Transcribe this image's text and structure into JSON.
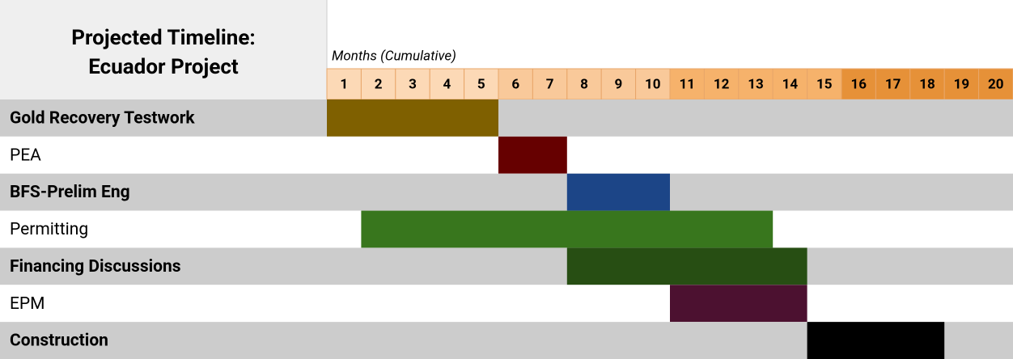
{
  "chart_data": {
    "type": "gantt",
    "title": [
      "Projected Timeline:",
      "Ecuador Project"
    ],
    "x_label": "Months (Cumulative)",
    "categories": [
      1,
      2,
      3,
      4,
      5,
      6,
      7,
      8,
      9,
      10,
      11,
      12,
      13,
      14,
      15,
      16,
      17,
      18,
      19,
      20
    ],
    "category_colors": [
      "#fcd9b6",
      "#fcd9b6",
      "#fcd9b6",
      "#fcd9b6",
      "#fcd9b6",
      "#f9c99a",
      "#f9c99a",
      "#f9c99a",
      "#f9c99a",
      "#f9c99a",
      "#f6b26b",
      "#f6b26b",
      "#f6b26b",
      "#f6b26b",
      "#f6b26b",
      "#e69138",
      "#e69138",
      "#e69138",
      "#e69138",
      "#e69138"
    ],
    "row_colors": [
      "#cccccc",
      "#ffffff"
    ],
    "tasks": [
      {
        "name": "Gold Recovery Testwork",
        "start": 1,
        "end": 5,
        "color": "#7f6000",
        "bold": true
      },
      {
        "name": "PEA",
        "start": 6,
        "end": 7,
        "color": "#660000",
        "bold": false
      },
      {
        "name": "BFS-Prelim Eng",
        "start": 8,
        "end": 10,
        "color": "#1c4587",
        "bold": true
      },
      {
        "name": "Permitting",
        "start": 2,
        "end": 13,
        "color": "#38761d",
        "bold": false
      },
      {
        "name": "Financing Discussions",
        "start": 8,
        "end": 14,
        "color": "#274e13",
        "bold": true
      },
      {
        "name": "EPM",
        "start": 11,
        "end": 14,
        "color": "#4c1130",
        "bold": false
      },
      {
        "name": "Construction",
        "start": 15,
        "end": 18,
        "color": "#000000",
        "bold": true
      }
    ]
  }
}
